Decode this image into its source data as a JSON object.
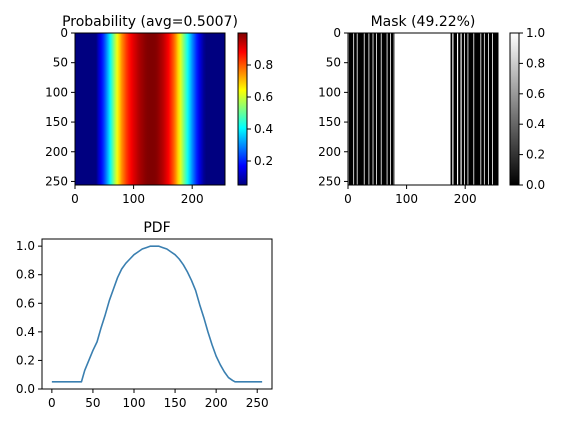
{
  "chart_data": [
    {
      "type": "heatmap",
      "title": "Probability (avg=0.5007)",
      "xlim": [
        0,
        256
      ],
      "ylim": [
        256,
        0
      ],
      "xticks": [
        0,
        100,
        200
      ],
      "yticks": [
        0,
        50,
        100,
        150,
        200,
        250
      ],
      "colormap": "jet",
      "colorbar": {
        "range": [
          0.05,
          1.0
        ],
        "ticks": [
          0.2,
          0.4,
          0.6,
          0.8
        ]
      },
      "column_profile": {
        "x": [
          0,
          36,
          40,
          50,
          60,
          70,
          80,
          90,
          100,
          110,
          120,
          125,
          135,
          140,
          150,
          160,
          170,
          180,
          190,
          200,
          210,
          220,
          223,
          256
        ],
        "y": [
          0.05,
          0.05,
          0.11,
          0.23,
          0.4,
          0.6,
          0.75,
          0.85,
          0.91,
          0.96,
          0.99,
          1.0,
          1.0,
          0.99,
          0.95,
          0.88,
          0.78,
          0.62,
          0.45,
          0.3,
          0.17,
          0.07,
          0.05,
          0.05
        ]
      }
    },
    {
      "type": "heatmap",
      "title": "Mask (49.22%)",
      "xlim": [
        0,
        256
      ],
      "ylim": [
        256,
        0
      ],
      "xticks": [
        0,
        100,
        200
      ],
      "yticks": [
        0,
        50,
        100,
        150,
        200,
        250
      ],
      "colormap": "gray",
      "colorbar": {
        "range": [
          0.0,
          1.0
        ],
        "ticks": [
          0.0,
          0.2,
          0.4,
          0.6,
          0.8,
          1.0
        ]
      },
      "white_columns": [
        [
          0,
          1
        ],
        [
          9,
          10
        ],
        [
          15,
          16
        ],
        [
          27,
          28
        ],
        [
          35,
          36
        ],
        [
          42,
          43
        ],
        [
          48,
          49
        ],
        [
          56,
          57
        ],
        [
          66,
          67
        ],
        [
          72,
          73
        ],
        [
          78,
          79
        ],
        [
          80,
          175
        ],
        [
          178,
          180
        ],
        [
          186,
          188
        ],
        [
          192,
          194
        ],
        [
          198,
          199
        ],
        [
          204,
          205
        ],
        [
          214,
          215
        ],
        [
          226,
          227
        ],
        [
          232,
          233
        ],
        [
          239,
          240
        ],
        [
          246,
          247
        ]
      ]
    },
    {
      "type": "line",
      "title": "PDF",
      "xlim": [
        -12,
        268
      ],
      "ylim": [
        0.0,
        1.05
      ],
      "xticks": [
        0,
        50,
        100,
        150,
        200,
        250
      ],
      "yticks": [
        0.0,
        0.2,
        0.4,
        0.6,
        0.8,
        1.0
      ],
      "color": "#3a7fb0",
      "series": [
        {
          "x": [
            0,
            36,
            40,
            45,
            50,
            55,
            60,
            65,
            70,
            75,
            80,
            85,
            90,
            95,
            100,
            105,
            110,
            115,
            120,
            125,
            130,
            135,
            140,
            145,
            150,
            155,
            160,
            165,
            170,
            175,
            180,
            185,
            190,
            195,
            200,
            205,
            210,
            215,
            220,
            223,
            256
          ],
          "y": [
            0.05,
            0.05,
            0.13,
            0.2,
            0.27,
            0.33,
            0.43,
            0.52,
            0.62,
            0.7,
            0.78,
            0.84,
            0.88,
            0.91,
            0.94,
            0.96,
            0.98,
            0.99,
            1.0,
            1.0,
            1.0,
            0.99,
            0.98,
            0.96,
            0.94,
            0.91,
            0.87,
            0.82,
            0.76,
            0.69,
            0.59,
            0.5,
            0.4,
            0.31,
            0.23,
            0.17,
            0.12,
            0.08,
            0.06,
            0.05,
            0.05
          ]
        }
      ]
    }
  ]
}
